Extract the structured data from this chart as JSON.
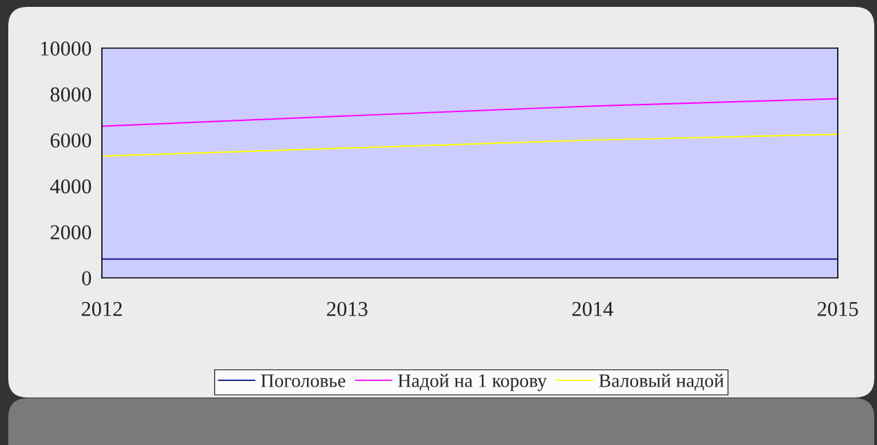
{
  "chart_data": {
    "type": "line",
    "x": [
      2012,
      2013,
      2014,
      2015
    ],
    "series": [
      {
        "name": "Поголовье",
        "color": "#000080",
        "values": [
          820,
          820,
          820,
          820
        ]
      },
      {
        "name": "Надой на 1 корову",
        "color": "#ff00ff",
        "values": [
          6600,
          7050,
          7480,
          7800
        ]
      },
      {
        "name": "Валовый надой",
        "color": "#ffff00",
        "values": [
          5300,
          5650,
          6000,
          6250
        ]
      }
    ],
    "xlim": [
      2012,
      2015
    ],
    "xticks": [
      2012,
      2013,
      2014,
      2015
    ],
    "ylim": [
      0,
      10000
    ],
    "yticks": [
      0,
      2000,
      4000,
      6000,
      8000,
      10000
    ],
    "grid": false,
    "legend": "bottom",
    "marker": "none",
    "line_style": "solid"
  }
}
